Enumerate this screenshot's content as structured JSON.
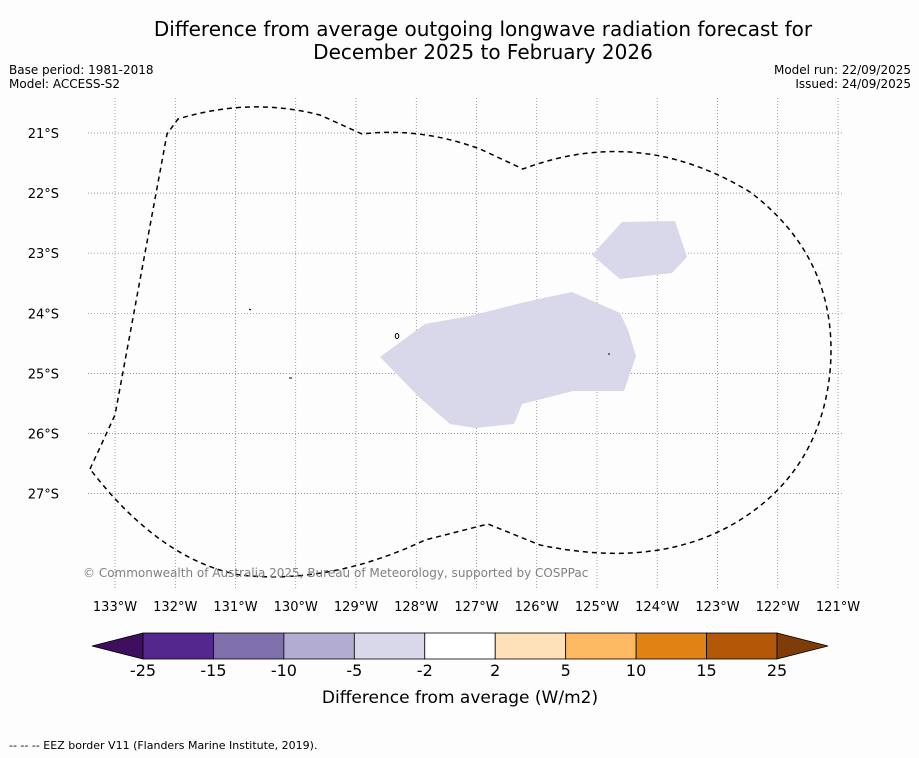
{
  "title": {
    "line1": "Difference from average outgoing longwave radiation forecast for",
    "line2": "December 2025 to February 2026"
  },
  "meta_left": {
    "base_period": "Base period: 1981-2018",
    "model": "Model: ACCESS-S2"
  },
  "meta_right": {
    "model_run": "Model run: 22/09/2025",
    "issued": "Issued: 24/09/2025"
  },
  "map": {
    "lon_labels": [
      "133°W",
      "132°W",
      "131°W",
      "130°W",
      "129°W",
      "128°W",
      "127°W",
      "126°W",
      "125°W",
      "124°W",
      "123°W",
      "122°W",
      "121°W"
    ],
    "lat_labels": [
      "21°S",
      "22°S",
      "23°S",
      "24°S",
      "25°S",
      "26°S",
      "27°S"
    ],
    "copyright": "© Commonwealth of Australia 2025, Bureau of Meteorology, supported by COSPPac",
    "anomaly_fill_color": "#d8d8ea",
    "border_color": "#000000"
  },
  "colorbar": {
    "title": "Difference from average (W/m2)",
    "tick_labels": [
      "-25",
      "-15",
      "-10",
      "-5",
      "-2",
      "2",
      "5",
      "10",
      "15",
      "25"
    ],
    "colors": [
      "#3f0f5f",
      "#54278f",
      "#7f70ac",
      "#b2acd3",
      "#d8d8ea",
      "#ffffff",
      "#fde1b8",
      "#fdb862",
      "#e08214",
      "#b35806",
      "#7f3b08"
    ]
  },
  "footer": "--  --  -- EEZ border V11 (Flanders Marine Institute, 2019)."
}
